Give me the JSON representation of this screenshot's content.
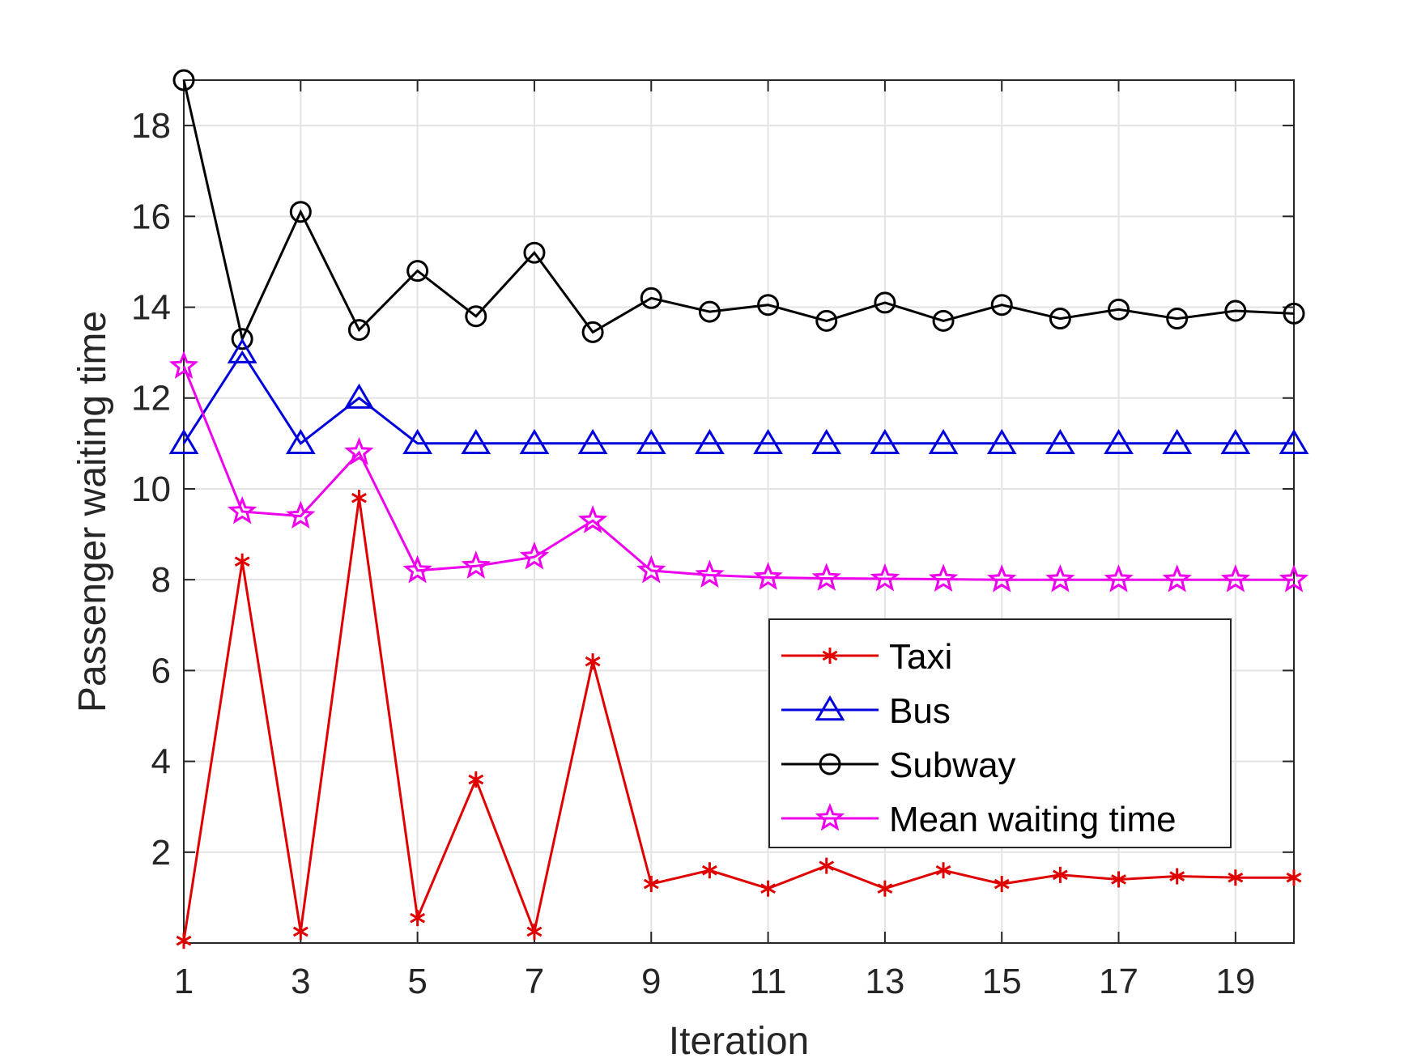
{
  "chart_data": {
    "type": "line",
    "title": "",
    "xlabel": "Iteration",
    "ylabel": "Passenger waiting time",
    "xlim": [
      1,
      20
    ],
    "ylim": [
      0,
      19
    ],
    "xticks": [
      1,
      3,
      5,
      7,
      9,
      11,
      13,
      15,
      17,
      19
    ],
    "yticks": [
      2,
      4,
      6,
      8,
      10,
      12,
      14,
      16,
      18
    ],
    "grid": true,
    "legend_position": "lower-right",
    "x": [
      1,
      2,
      3,
      4,
      5,
      6,
      7,
      8,
      9,
      10,
      11,
      12,
      13,
      14,
      15,
      16,
      17,
      18,
      19,
      20
    ],
    "series": [
      {
        "name": "Taxi",
        "color": "#e00000",
        "marker": "asterisk",
        "values": [
          0.05,
          8.4,
          0.25,
          9.8,
          0.55,
          3.6,
          0.25,
          6.2,
          1.3,
          1.6,
          1.2,
          1.7,
          1.2,
          1.6,
          1.3,
          1.5,
          1.4,
          1.47,
          1.44,
          1.44
        ]
      },
      {
        "name": "Bus",
        "color": "#0000dd",
        "marker": "triangle",
        "values": [
          11,
          13,
          11,
          12,
          11,
          11,
          11,
          11,
          11,
          11,
          11,
          11,
          11,
          11,
          11,
          11,
          11,
          11,
          11,
          11
        ]
      },
      {
        "name": "Subway",
        "color": "#000000",
        "marker": "circle",
        "values": [
          19,
          13.3,
          16.1,
          13.5,
          14.8,
          13.8,
          15.2,
          13.45,
          14.2,
          13.9,
          14.05,
          13.7,
          14.1,
          13.7,
          14.05,
          13.75,
          13.95,
          13.75,
          13.92,
          13.86
        ]
      },
      {
        "name": "Mean waiting time",
        "color": "#ee00ee",
        "marker": "star",
        "values": [
          12.7,
          9.5,
          9.4,
          10.8,
          8.2,
          8.3,
          8.5,
          9.3,
          8.2,
          8.1,
          8.05,
          8.03,
          8.02,
          8.01,
          8.0,
          8.0,
          8.0,
          8.0,
          8.0,
          8.0
        ]
      }
    ]
  }
}
